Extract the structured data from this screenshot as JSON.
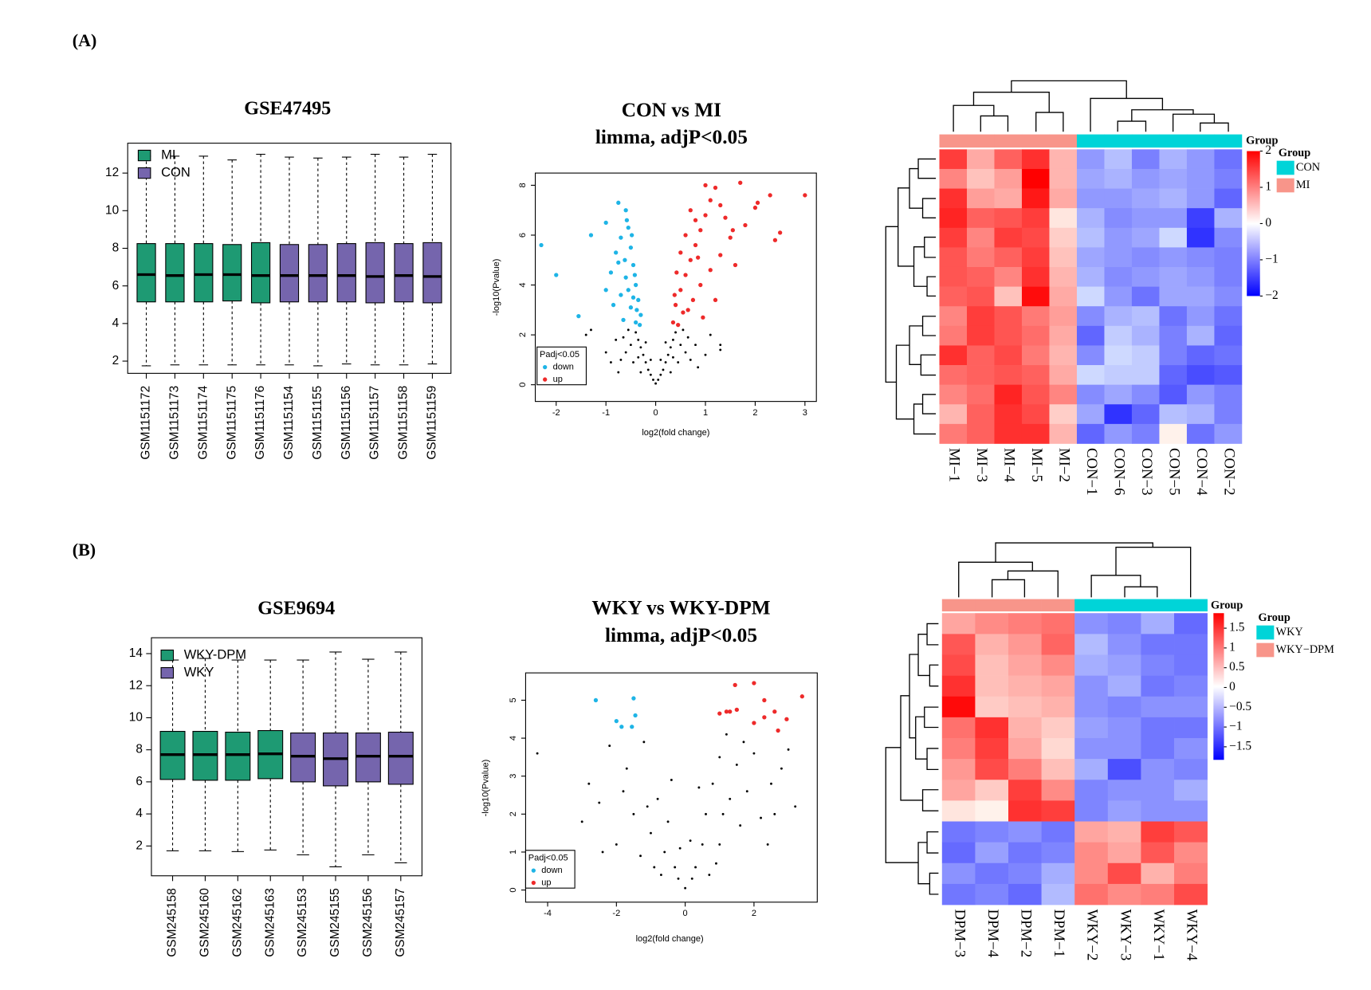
{
  "panel_labels": [
    "(A)",
    "(B)"
  ],
  "chart_data": [
    {
      "type": "box",
      "title": "GSE47495",
      "categories": [
        "GSM1151172",
        "GSM1151173",
        "GSM1151174",
        "GSM1151175",
        "GSM1151176",
        "GSM1151154",
        "GSM1151155",
        "GSM1151156",
        "GSM1151157",
        "GSM1151158",
        "GSM1151159"
      ],
      "group": [
        0,
        0,
        0,
        0,
        0,
        1,
        1,
        1,
        1,
        1,
        1
      ],
      "series": [
        {
          "name": "MI",
          "color": "#1e9a73"
        },
        {
          "name": "CON",
          "color": "#7565ad"
        }
      ],
      "min": [
        1.75,
        1.8,
        1.8,
        1.8,
        1.8,
        1.8,
        1.75,
        1.85,
        1.8,
        1.8,
        1.85
      ],
      "q1": [
        5.15,
        5.15,
        5.15,
        5.2,
        5.1,
        5.15,
        5.15,
        5.15,
        5.1,
        5.15,
        5.1
      ],
      "median": [
        6.6,
        6.55,
        6.6,
        6.6,
        6.55,
        6.55,
        6.55,
        6.55,
        6.5,
        6.55,
        6.5
      ],
      "q3": [
        8.25,
        8.25,
        8.25,
        8.2,
        8.3,
        8.2,
        8.2,
        8.25,
        8.3,
        8.25,
        8.3
      ],
      "max": [
        12.9,
        12.9,
        12.9,
        12.7,
        13.0,
        12.85,
        12.8,
        12.85,
        13.0,
        12.85,
        13.0
      ],
      "ylim": [
        1.35,
        13.59
      ],
      "yticks": [
        2,
        4,
        6,
        8,
        10,
        12
      ]
    },
    {
      "type": "scatter",
      "title": "CON vs MI",
      "subtitle": "limma, adjP<0.05",
      "x_label": "log2(fold change)",
      "y_label": "-log10(Pvalue)",
      "legend_title": "Padj<0.05",
      "series": [
        {
          "color": "#000000",
          "x": [
            0,
            -0.05,
            0.05,
            -0.1,
            0.1,
            -0.15,
            0.15,
            -0.2,
            0.2,
            -0.25,
            0.25,
            -0.3,
            0.3,
            -0.35,
            0.35,
            -0.4,
            0.4,
            -0.5,
            0.5,
            -0.6,
            0.6,
            -0.7,
            0.7,
            -0.8,
            0.8,
            -1.0,
            1.0,
            -1.3,
            1.3,
            -1.4,
            1.3,
            -0.45,
            0.45,
            -0.3,
            0.3,
            -0.55,
            0.55,
            -0.65,
            0.65,
            -0.2,
            0.2,
            -0.1,
            0.1,
            -0.75,
            0.85,
            -0.9,
            1.1,
            -0.35,
            0.35
          ],
          "values": [
            0.05,
            0.2,
            0.2,
            0.4,
            0.4,
            0.6,
            0.6,
            0.9,
            0.9,
            1.2,
            1.2,
            1.5,
            1.5,
            1.8,
            1.8,
            2.1,
            2.1,
            1.6,
            1.6,
            1.3,
            1.3,
            1.0,
            1.0,
            1.8,
            1.6,
            1.3,
            1.2,
            2.2,
            1.4,
            2.0,
            1.6,
            0.9,
            0.9,
            0.5,
            0.5,
            2.2,
            2.2,
            1.9,
            1.9,
            1.7,
            1.7,
            1.0,
            1.0,
            0.5,
            0.7,
            0.9,
            2.0,
            1.1,
            1.1
          ]
        },
        {
          "name": "down",
          "color": "#1eb4e6",
          "x": [
            -2.3,
            -2.0,
            -1.55,
            -1.3,
            -1.0,
            -0.75,
            -0.6,
            -0.8,
            -0.9,
            -1.0,
            -0.7,
            -0.55,
            -0.5,
            -0.45,
            -0.4,
            -0.35,
            -0.3,
            -0.6,
            -0.7,
            -0.5,
            -0.4,
            -0.65,
            -0.55,
            -0.45,
            -0.75,
            -0.85,
            -0.38,
            -0.32,
            -0.62,
            -0.48,
            -0.58,
            -0.42
          ],
          "values": [
            5.6,
            4.4,
            2.75,
            6.0,
            6.5,
            7.3,
            7.0,
            5.3,
            4.5,
            3.8,
            5.9,
            6.3,
            5.5,
            4.8,
            4.0,
            3.4,
            2.8,
            4.3,
            3.6,
            3.1,
            2.5,
            2.6,
            3.8,
            3.5,
            4.9,
            3.2,
            3.0,
            2.4,
            5.0,
            6.0,
            6.6,
            4.4
          ]
        },
        {
          "name": "up",
          "color": "#ee2a2a",
          "x": [
            0.35,
            0.4,
            0.5,
            0.6,
            0.7,
            0.8,
            0.9,
            1.0,
            1.1,
            1.0,
            1.2,
            1.7,
            2.0,
            2.05,
            2.3,
            2.5,
            2.4,
            3.0,
            1.5,
            1.8,
            1.3,
            1.1,
            0.9,
            0.75,
            0.55,
            0.45,
            0.65,
            0.85,
            1.4,
            1.6,
            0.6,
            0.7,
            1.2,
            0.95,
            0.42,
            0.5,
            0.8,
            1.3,
            1.55,
            0.38
          ],
          "values": [
            2.5,
            3.2,
            3.8,
            4.4,
            5.0,
            5.6,
            6.2,
            6.8,
            7.4,
            8.0,
            7.9,
            8.1,
            7.1,
            7.3,
            7.6,
            6.1,
            5.8,
            7.6,
            5.9,
            6.4,
            5.2,
            4.6,
            4.0,
            3.4,
            2.9,
            2.4,
            3.0,
            5.1,
            6.7,
            4.8,
            6.0,
            7.0,
            3.4,
            2.7,
            4.5,
            5.3,
            6.6,
            7.2,
            6.2,
            3.6
          ]
        }
      ],
      "xlim": [
        -2.42,
        3.23
      ],
      "xticks": [
        -2,
        -1,
        0,
        1,
        2,
        3
      ],
      "ylim": [
        -0.67,
        8.49
      ],
      "yticks": [
        0,
        2,
        4,
        6,
        8
      ]
    },
    {
      "type": "heatmap",
      "group_title": "Group",
      "columns": [
        "MI−1",
        "MI−3",
        "MI−4",
        "MI−5",
        "MI−2",
        "CON−1",
        "CON−6",
        "CON−3",
        "CON−5",
        "CON−4",
        "CON−2"
      ],
      "column_group": [
        1,
        1,
        1,
        1,
        1,
        0,
        0,
        0,
        0,
        0,
        0
      ],
      "groups": [
        {
          "name": "CON",
          "color": "#00d4d8"
        },
        {
          "name": "MI",
          "color": "#f8958a"
        }
      ],
      "values": [
        [
          1.5,
          0.6,
          1.2,
          1.6,
          0.5,
          -0.8,
          -0.5,
          -1.0,
          -0.6,
          -0.8,
          -1.1
        ],
        [
          0.9,
          0.4,
          0.7,
          2.0,
          0.5,
          -0.7,
          -0.6,
          -0.8,
          -0.7,
          -0.8,
          -1.0
        ],
        [
          1.6,
          0.7,
          0.6,
          1.8,
          0.6,
          -0.8,
          -0.8,
          -0.7,
          -0.6,
          -0.8,
          -1.2
        ],
        [
          1.7,
          1.2,
          1.3,
          1.5,
          0.1,
          -0.6,
          -0.9,
          -0.8,
          -0.8,
          -1.5,
          -0.6
        ],
        [
          1.5,
          0.9,
          1.5,
          1.4,
          0.3,
          -0.5,
          -0.8,
          -0.7,
          -0.3,
          -1.6,
          -0.9
        ],
        [
          1.3,
          1.0,
          1.2,
          1.5,
          0.4,
          -0.7,
          -0.8,
          -0.9,
          -0.8,
          -0.9,
          -1.0
        ],
        [
          1.3,
          1.2,
          0.9,
          1.6,
          0.5,
          -0.6,
          -0.9,
          -0.8,
          -0.7,
          -0.8,
          -1.0
        ],
        [
          1.2,
          1.3,
          0.4,
          1.9,
          0.6,
          -0.3,
          -0.8,
          -1.1,
          -0.7,
          -0.7,
          -0.9
        ],
        [
          0.9,
          1.5,
          1.3,
          1.0,
          0.7,
          -0.9,
          -0.6,
          -0.5,
          -1.1,
          -0.8,
          -1.1
        ],
        [
          1.0,
          1.5,
          1.3,
          1.1,
          0.6,
          -1.2,
          -0.4,
          -0.6,
          -1.0,
          -0.6,
          -1.2
        ],
        [
          1.6,
          1.2,
          1.4,
          1.0,
          0.5,
          -0.9,
          -0.3,
          -0.4,
          -1.0,
          -1.2,
          -1.1
        ],
        [
          1.1,
          1.2,
          1.3,
          1.2,
          0.6,
          -0.3,
          -0.4,
          -0.4,
          -1.2,
          -1.4,
          -1.3
        ],
        [
          0.9,
          1.1,
          1.7,
          1.3,
          0.9,
          -0.9,
          -0.7,
          -0.9,
          -1.3,
          -0.8,
          -1.0
        ],
        [
          0.5,
          1.2,
          1.6,
          1.4,
          0.3,
          -0.7,
          -1.6,
          -1.2,
          -0.5,
          -0.6,
          -1.0
        ],
        [
          1.0,
          1.2,
          1.6,
          1.6,
          0.5,
          -1.2,
          -0.8,
          -1.0,
          0.0,
          -1.1,
          -0.8
        ]
      ],
      "zlim": [
        -2,
        2
      ],
      "zticks": [
        2,
        1,
        0,
        {
          "value": -1,
          "label": "−1"
        },
        {
          "value": -2,
          "label": "−2"
        }
      ]
    },
    {
      "type": "box",
      "title": "GSE9694",
      "categories": [
        "GSM245158",
        "GSM245160",
        "GSM245162",
        "GSM245163",
        "GSM245153",
        "GSM245155",
        "GSM245156",
        "GSM245157"
      ],
      "group": [
        0,
        0,
        0,
        0,
        1,
        1,
        1,
        1
      ],
      "series": [
        {
          "name": "WKY-DPM",
          "color": "#1e9a73"
        },
        {
          "name": "WKY",
          "color": "#7565ad"
        }
      ],
      "min": [
        1.7,
        1.7,
        1.65,
        1.75,
        1.45,
        0.7,
        1.45,
        0.95
      ],
      "q1": [
        6.15,
        6.1,
        6.1,
        6.2,
        6.0,
        5.75,
        6.0,
        5.85
      ],
      "median": [
        7.7,
        7.7,
        7.7,
        7.75,
        7.6,
        7.45,
        7.6,
        7.6
      ],
      "q3": [
        9.15,
        9.15,
        9.1,
        9.2,
        9.05,
        9.05,
        9.05,
        9.1
      ],
      "max": [
        13.6,
        13.7,
        13.6,
        13.6,
        13.6,
        14.1,
        13.65,
        14.1
      ],
      "ylim": [
        0.14,
        14.99
      ],
      "yticks": [
        2,
        4,
        6,
        8,
        10,
        12,
        14
      ]
    },
    {
      "type": "scatter",
      "title": "WKY vs WKY-DPM",
      "subtitle": "limma, adjP<0.05",
      "x_label": "log2(fold change)",
      "y_label": "-log10(Pvalue)",
      "legend_title": "Padj<0.05",
      "series": [
        {
          "color": "#000000",
          "x": [
            -4.3,
            -3.0,
            -2.8,
            -2.5,
            -2.2,
            -2.0,
            -1.7,
            -1.5,
            -1.3,
            -1.0,
            -0.8,
            -0.6,
            -0.5,
            -0.3,
            -0.2,
            0,
            0.2,
            0.3,
            0.5,
            0.6,
            0.8,
            1.0,
            1.0,
            1.3,
            1.5,
            1.6,
            1.8,
            2.0,
            2.2,
            2.5,
            2.8,
            3.0,
            3.2,
            -1.2,
            -0.9,
            0.9,
            1.2,
            -2.4,
            2.4,
            -1.8,
            1.7,
            -0.4,
            0.4,
            -1.1,
            1.1,
            -0.7,
            0.7,
            -0.15,
            0.15,
            2.6
          ],
          "values": [
            3.6,
            1.8,
            2.8,
            2.3,
            3.8,
            1.2,
            3.2,
            2.0,
            0.9,
            1.5,
            2.4,
            1.0,
            1.8,
            0.6,
            0.3,
            0.05,
            0.3,
            0.6,
            1.2,
            2.0,
            2.8,
            3.5,
            1.2,
            2.4,
            3.3,
            1.7,
            2.6,
            3.6,
            1.9,
            2.8,
            3.2,
            3.7,
            2.2,
            3.9,
            0.6,
            0.7,
            4.1,
            1.0,
            1.2,
            2.6,
            3.9,
            2.9,
            2.7,
            2.2,
            2.0,
            0.4,
            0.4,
            1.1,
            1.3,
            2.0
          ]
        },
        {
          "name": "down",
          "color": "#1eb4e6",
          "x": [
            -2.6,
            -1.5,
            -2.0,
            -1.85,
            -1.55,
            -1.45
          ],
          "values": [
            5.0,
            5.05,
            4.45,
            4.3,
            4.3,
            4.6
          ]
        },
        {
          "name": "up",
          "color": "#ee2a2a",
          "x": [
            1.0,
            1.3,
            1.45,
            1.2,
            2.0,
            2.3,
            2.0,
            2.3,
            2.7,
            2.95,
            3.4,
            2.6,
            1.5
          ],
          "values": [
            4.65,
            4.7,
            5.4,
            4.7,
            5.45,
            5.0,
            4.4,
            4.55,
            4.2,
            4.5,
            5.1,
            4.7,
            4.75
          ]
        }
      ],
      "xlim": [
        -4.64,
        3.84
      ],
      "xticks": [
        -4,
        -2,
        0,
        2
      ],
      "ylim": [
        -0.32,
        5.72
      ],
      "yticks": [
        0,
        1,
        2,
        3,
        4,
        5
      ]
    },
    {
      "type": "heatmap",
      "group_title": "Group",
      "columns": [
        "DPM−3",
        "DPM−4",
        "DPM−2",
        "DPM−1",
        "WKY−2",
        "WKY−3",
        "WKY−1",
        "WKY−4"
      ],
      "column_group": [
        1,
        1,
        1,
        1,
        0,
        0,
        0,
        0
      ],
      "groups": [
        {
          "name": "WKY",
          "color": "#00d4d8"
        },
        {
          "name": "WKY−DPM",
          "color": "#f8958a"
        }
      ],
      "values": [
        [
          0.6,
          0.8,
          0.9,
          1.0,
          -0.8,
          -0.9,
          -0.6,
          -1.1
        ],
        [
          1.2,
          0.5,
          0.7,
          1.1,
          -0.5,
          -0.8,
          -1.0,
          -1.0
        ],
        [
          1.3,
          0.4,
          0.6,
          0.8,
          -0.6,
          -0.7,
          -0.9,
          -1.0
        ],
        [
          1.5,
          0.4,
          0.5,
          0.6,
          -0.8,
          -0.6,
          -1.0,
          -0.9
        ],
        [
          1.8,
          0.3,
          0.4,
          0.5,
          -0.8,
          -0.9,
          -0.8,
          -0.8
        ],
        [
          1.0,
          1.5,
          0.5,
          0.3,
          -0.7,
          -0.8,
          -1.0,
          -1.0
        ],
        [
          0.9,
          1.4,
          0.6,
          0.2,
          -0.8,
          -0.8,
          -1.0,
          -0.8
        ],
        [
          0.7,
          1.3,
          0.9,
          0.4,
          -0.6,
          -1.3,
          -0.8,
          -0.9
        ],
        [
          0.6,
          0.3,
          1.4,
          0.8,
          -0.9,
          -0.8,
          -0.8,
          -0.6
        ],
        [
          0.1,
          0.0,
          1.5,
          1.4,
          -0.9,
          -0.7,
          -0.8,
          -0.8
        ],
        [
          -1.0,
          -0.9,
          -0.8,
          -1.0,
          0.6,
          0.5,
          1.4,
          1.2
        ],
        [
          -1.1,
          -0.7,
          -1.0,
          -0.9,
          0.8,
          0.6,
          1.2,
          0.8
        ],
        [
          -0.8,
          -1.0,
          -0.9,
          -0.6,
          0.8,
          1.3,
          0.5,
          0.9
        ],
        [
          -1.0,
          -0.9,
          -1.1,
          -0.5,
          1.0,
          0.8,
          0.9,
          1.3
        ]
      ],
      "zlim": [
        -1.83,
        1.88
      ],
      "zticks": [
        1.5,
        1,
        0.5,
        0,
        {
          "value": -0.5,
          "label": "−0.5"
        },
        {
          "value": -1,
          "label": "−1"
        },
        {
          "value": -1.5,
          "label": "−1.5"
        }
      ]
    }
  ]
}
